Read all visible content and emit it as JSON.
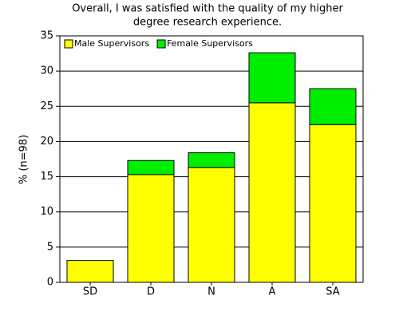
{
  "chart_data": {
    "type": "stacked-bar",
    "title": [
      "Overall, I was satisfied with the quality of my higher",
      "degree research experience."
    ],
    "y_label": "% (n=98)",
    "categories": [
      "SD",
      "D",
      "N",
      "A",
      "SA"
    ],
    "series": [
      {
        "name": "Male Supervisors",
        "color": "#ffff00",
        "values": [
          3.1,
          15.3,
          16.3,
          25.5,
          22.4
        ]
      },
      {
        "name": "Female Supervisors",
        "color": "#00ee00",
        "values": [
          0,
          2.0,
          2.1,
          7.1,
          5.1
        ]
      }
    ],
    "ylim": [
      0,
      35
    ],
    "yticks": [
      0,
      5,
      10,
      15,
      20,
      25,
      30,
      35
    ],
    "grid": true,
    "legend": "top-left"
  }
}
